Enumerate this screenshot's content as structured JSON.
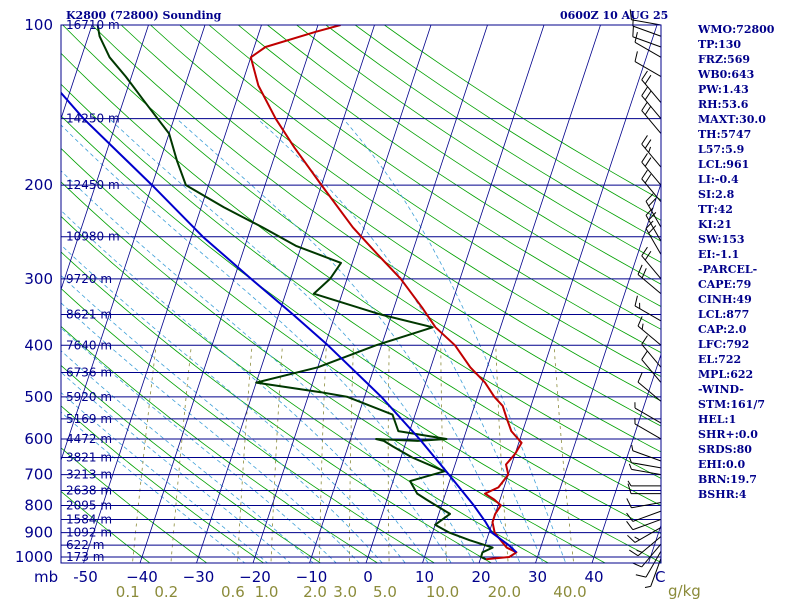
{
  "header": {
    "station": "K2800 (72800) Sounding",
    "time": "0600Z 10 AUG 25"
  },
  "colors": {
    "frame": "#00008b",
    "temperature": "#c00000",
    "dewpoint": "#003800",
    "parcel": "#0000cc",
    "isotherm": "#00008b",
    "dry_adiabat": "#00a000",
    "moist_adiabat": "#3fa0d8",
    "mixing_ratio": "#8b8b3a"
  },
  "chart_data": {
    "type": "line",
    "title": "",
    "x_unit": "C",
    "y_unit": "mb",
    "pressure_levels": [
      100,
      200,
      300,
      400,
      500,
      600,
      700,
      800,
      900,
      1000
    ],
    "temperature_ticks": [
      -50,
      -40,
      -30,
      -20,
      -10,
      0,
      10,
      20,
      30,
      40
    ],
    "temperature_tick_labels": [
      "-50",
      "−40",
      "−30",
      "−20",
      "−10",
      "0",
      "10",
      "20",
      "30",
      "40"
    ],
    "mixing_ratio_labels": [
      "0.1",
      "0.2",
      "0.6",
      "1.0",
      "2.0",
      "3.0",
      "5.0",
      "10.0",
      "20.0",
      "40.0"
    ],
    "mixing_ratio_unit": "g/kg",
    "height_labels": [
      {
        "p": 100,
        "text": "16710 m"
      },
      {
        "p": 150,
        "text": "14250 m"
      },
      {
        "p": 200,
        "text": "12450 m"
      },
      {
        "p": 250,
        "text": "10980 m"
      },
      {
        "p": 300,
        "text": "9720 m"
      },
      {
        "p": 350,
        "text": "8621 m"
      },
      {
        "p": 400,
        "text": "7640 m"
      },
      {
        "p": 450,
        "text": "6736 m"
      },
      {
        "p": 500,
        "text": "5920 m"
      },
      {
        "p": 550,
        "text": "5169 m"
      },
      {
        "p": 600,
        "text": "4472 m"
      },
      {
        "p": 650,
        "text": "3821 m"
      },
      {
        "p": 700,
        "text": "3213 m"
      },
      {
        "p": 750,
        "text": "2638 m"
      },
      {
        "p": 800,
        "text": "2095 m"
      },
      {
        "p": 850,
        "text": "1584 m"
      },
      {
        "p": 900,
        "text": "1092 m"
      },
      {
        "p": 950,
        "text": "622 m"
      },
      {
        "p": 1000,
        "text": "173 m"
      }
    ],
    "series": [
      {
        "key": "temperature",
        "points": [
          [
            1010,
            21
          ],
          [
            1000,
            25
          ],
          [
            980,
            26
          ],
          [
            960,
            24
          ],
          [
            930,
            22.5
          ],
          [
            900,
            21
          ],
          [
            860,
            20
          ],
          [
            830,
            20
          ],
          [
            800,
            20.5
          ],
          [
            780,
            19
          ],
          [
            760,
            17
          ],
          [
            740,
            19
          ],
          [
            700,
            20
          ],
          [
            670,
            19
          ],
          [
            640,
            20
          ],
          [
            610,
            20.5
          ],
          [
            580,
            18
          ],
          [
            550,
            16.5
          ],
          [
            520,
            15
          ],
          [
            500,
            13
          ],
          [
            470,
            10.5
          ],
          [
            440,
            7
          ],
          [
            400,
            3
          ],
          [
            370,
            -1.5
          ],
          [
            340,
            -5
          ],
          [
            300,
            -10.5
          ],
          [
            270,
            -16
          ],
          [
            240,
            -22
          ],
          [
            200,
            -30
          ],
          [
            170,
            -37
          ],
          [
            150,
            -42
          ],
          [
            130,
            -47
          ],
          [
            115,
            -50
          ],
          [
            110,
            -48
          ],
          [
            103,
            -40
          ],
          [
            100,
            -36
          ]
        ]
      },
      {
        "key": "dewpoint",
        "points": [
          [
            1010,
            21
          ],
          [
            1000,
            20
          ],
          [
            980,
            20
          ],
          [
            960,
            21.5
          ],
          [
            930,
            17
          ],
          [
            900,
            13
          ],
          [
            870,
            10
          ],
          [
            830,
            12
          ],
          [
            800,
            9
          ],
          [
            780,
            7
          ],
          [
            760,
            5
          ],
          [
            720,
            3
          ],
          [
            690,
            8.5
          ],
          [
            650,
            2
          ],
          [
            620,
            -2
          ],
          [
            605,
            -4
          ],
          [
            600,
            -5.5
          ],
          [
            605,
            2
          ],
          [
            600,
            7
          ],
          [
            580,
            -2
          ],
          [
            540,
            -4
          ],
          [
            500,
            -13
          ],
          [
            490,
            -18
          ],
          [
            470,
            -30
          ],
          [
            440,
            -20
          ],
          [
            400,
            -11
          ],
          [
            370,
            -2
          ],
          [
            350,
            -12
          ],
          [
            320,
            -25
          ],
          [
            300,
            -23
          ],
          [
            280,
            -22
          ],
          [
            260,
            -31
          ],
          [
            240,
            -38
          ],
          [
            220,
            -46
          ],
          [
            200,
            -54
          ],
          [
            180,
            -57
          ],
          [
            160,
            -60
          ],
          [
            140,
            -66
          ],
          [
            125,
            -71
          ],
          [
            115,
            -75
          ],
          [
            105,
            -78
          ],
          [
            100,
            -79
          ]
        ]
      },
      {
        "key": "parcel",
        "points": [
          [
            980,
            26
          ],
          [
            950,
            24.2
          ],
          [
            900,
            20.5
          ],
          [
            860,
            18.8
          ],
          [
            800,
            15.7
          ],
          [
            700,
            9.5
          ],
          [
            600,
            2.2
          ],
          [
            500,
            -7
          ],
          [
            400,
            -19.5
          ],
          [
            350,
            -27.5
          ],
          [
            300,
            -37
          ],
          [
            250,
            -48
          ],
          [
            200,
            -60
          ],
          [
            150,
            -76
          ],
          [
            100,
            -96
          ]
        ]
      }
    ],
    "wind_barbs": [
      {
        "p": 1005,
        "dir": 200,
        "kt": 5
      },
      {
        "p": 975,
        "dir": 210,
        "kt": 10
      },
      {
        "p": 945,
        "dir": 220,
        "kt": 10
      },
      {
        "p": 915,
        "dir": 230,
        "kt": 15
      },
      {
        "p": 880,
        "dir": 240,
        "kt": 15
      },
      {
        "p": 850,
        "dir": 250,
        "kt": 10
      },
      {
        "p": 820,
        "dir": 250,
        "kt": 10
      },
      {
        "p": 790,
        "dir": 260,
        "kt": 10
      },
      {
        "p": 760,
        "dir": 270,
        "kt": 10
      },
      {
        "p": 735,
        "dir": 270,
        "kt": 5
      },
      {
        "p": 700,
        "dir": 280,
        "kt": 5
      },
      {
        "p": 680,
        "dir": 280,
        "kt": 5
      },
      {
        "p": 660,
        "dir": 290,
        "kt": 5
      },
      {
        "p": 600,
        "dir": 300,
        "kt": 5
      },
      {
        "p": 560,
        "dir": 300,
        "kt": 5
      },
      {
        "p": 510,
        "dir": 310,
        "kt": 10
      },
      {
        "p": 470,
        "dir": 320,
        "kt": 10
      },
      {
        "p": 440,
        "dir": 320,
        "kt": 10
      },
      {
        "p": 400,
        "dir": 310,
        "kt": 15
      },
      {
        "p": 360,
        "dir": 300,
        "kt": 15
      },
      {
        "p": 320,
        "dir": 310,
        "kt": 20
      },
      {
        "p": 300,
        "dir": 320,
        "kt": 20
      },
      {
        "p": 270,
        "dir": 330,
        "kt": 20
      },
      {
        "p": 255,
        "dir": 330,
        "kt": 20
      },
      {
        "p": 240,
        "dir": 330,
        "kt": 20
      },
      {
        "p": 215,
        "dir": 320,
        "kt": 20
      },
      {
        "p": 200,
        "dir": 320,
        "kt": 20
      },
      {
        "p": 185,
        "dir": 320,
        "kt": 25
      },
      {
        "p": 160,
        "dir": 320,
        "kt": 20
      },
      {
        "p": 150,
        "dir": 320,
        "kt": 20
      },
      {
        "p": 140,
        "dir": 320,
        "kt": 20
      },
      {
        "p": 125,
        "dir": 300,
        "kt": 10
      },
      {
        "p": 115,
        "dir": 300,
        "kt": 10
      },
      {
        "p": 110,
        "dir": 290,
        "kt": 10
      },
      {
        "p": 105,
        "dir": 290,
        "kt": 10
      },
      {
        "p": 100,
        "dir": 280,
        "kt": 10
      }
    ],
    "grid": true
  },
  "indices": [
    "WMO:72800",
    "TP:130",
    "FRZ:569",
    "WB0:643",
    "PW:1.43",
    "RH:53.6",
    "MAXT:30.0",
    "TH:5747",
    "L57:5.9",
    "LCL:961",
    "LI:-0.4",
    "SI:2.8",
    "TT:42",
    "KI:21",
    "SW:153",
    "EI:-1.1",
    "-PARCEL-",
    "CAPE:79",
    "CINH:49",
    "LCL:877",
    "CAP:2.0",
    "LFC:792",
    "EL:722",
    "MPL:622",
    "-WIND-",
    "STM:161/7",
    "HEL:1",
    "SHR+:0.0",
    "SRDS:80",
    "EHI:0.0",
    "BRN:19.7",
    "BSHR:4"
  ]
}
